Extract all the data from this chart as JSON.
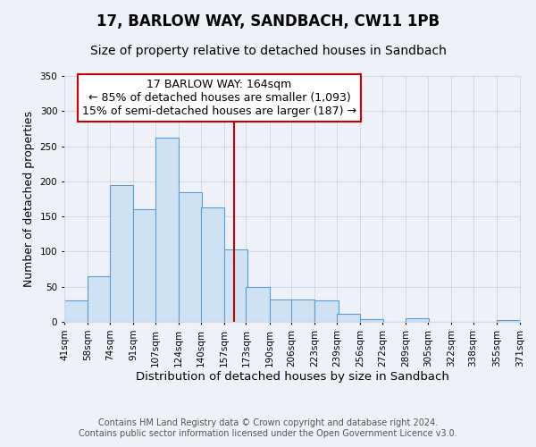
{
  "title1": "17, BARLOW WAY, SANDBACH, CW11 1PB",
  "title2": "Size of property relative to detached houses in Sandbach",
  "xlabel": "Distribution of detached houses by size in Sandbach",
  "ylabel": "Number of detached properties",
  "bar_left_edges": [
    41,
    58,
    74,
    91,
    107,
    124,
    140,
    157,
    173,
    190,
    206,
    223,
    239,
    256,
    272,
    289,
    305,
    322,
    338,
    355
  ],
  "bar_heights": [
    30,
    65,
    195,
    160,
    262,
    184,
    163,
    103,
    50,
    32,
    32,
    30,
    11,
    4,
    0,
    5,
    0,
    0,
    0,
    2
  ],
  "bin_width": 17,
  "bar_face_color": "#cfe2f3",
  "bar_edge_color": "#5b9bd5",
  "vline_x": 164,
  "vline_color": "#cc0000",
  "annotation_line1": "17 BARLOW WAY: 164sqm",
  "annotation_line2": "← 85% of detached houses are smaller (1,093)",
  "annotation_line3": "15% of semi-detached houses are larger (187) →",
  "annotation_box_edge_color": "#cc0000",
  "ylim": [
    0,
    350
  ],
  "yticks": [
    0,
    50,
    100,
    150,
    200,
    250,
    300,
    350
  ],
  "tick_labels": [
    "41sqm",
    "58sqm",
    "74sqm",
    "91sqm",
    "107sqm",
    "124sqm",
    "140sqm",
    "157sqm",
    "173sqm",
    "190sqm",
    "206sqm",
    "223sqm",
    "239sqm",
    "256sqm",
    "272sqm",
    "289sqm",
    "305sqm",
    "322sqm",
    "338sqm",
    "355sqm",
    "371sqm"
  ],
  "grid_color": "#d0d8e8",
  "background_color": "#eef2f8",
  "plot_bg_color": "#eef2f8",
  "footer_line1": "Contains HM Land Registry data © Crown copyright and database right 2024.",
  "footer_line2": "Contains public sector information licensed under the Open Government Licence v3.0.",
  "title1_fontsize": 12,
  "title2_fontsize": 10,
  "xlabel_fontsize": 9.5,
  "ylabel_fontsize": 9,
  "tick_fontsize": 7.5,
  "footer_fontsize": 7,
  "annotation_fontsize": 9
}
